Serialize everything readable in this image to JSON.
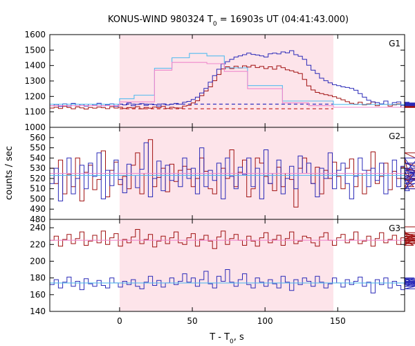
{
  "title_main": "KONUS-WIND 980324 T",
  "title_sub": "0",
  "title_rest": " = 16903s UT (04:41:43.000)",
  "ylabel": "counts / sec",
  "xlabel_main": "T - T",
  "xlabel_sub": "0",
  "xlabel_rest": ", s",
  "colors": {
    "shade": "#fde4ea",
    "red": "#a01010",
    "blue": "#2a2ab8",
    "cyan": "#55bbee",
    "pink": "#ee88cc",
    "red_dash": "#c01818",
    "blue_dash": "#3030c0"
  },
  "chart_data": [
    {
      "type": "line",
      "panel": "G1",
      "xlim": [
        -48,
        196
      ],
      "ylim": [
        1000,
        1600
      ],
      "yticks": [
        1000,
        1100,
        1200,
        1300,
        1400,
        1500,
        1600
      ],
      "xticks": [
        0,
        50,
        100,
        150
      ],
      "shaded_interval": [
        0,
        147
      ],
      "background_levels": [
        {
          "value": 1120,
          "color": "red"
        },
        {
          "value": 1150,
          "color": "blue"
        }
      ],
      "series": [
        {
          "color": "red",
          "x_start": -48,
          "step": 2.944,
          "values": [
            1125,
            1130,
            1122,
            1135,
            1128,
            1120,
            1132,
            1126,
            1118,
            1129,
            1124,
            1131,
            1127,
            1121,
            1133,
            1125,
            1130,
            1122,
            1128,
            1126,
            1134,
            1120,
            1129,
            1124,
            1131,
            1127,
            1135,
            1122,
            1130,
            1126,
            1125,
            1138,
            1142,
            1158,
            1172,
            1205,
            1235,
            1262,
            1302,
            1342,
            1378,
            1392,
            1380,
            1395,
            1384,
            1398,
            1390,
            1402,
            1387,
            1394,
            1380,
            1392,
            1376,
            1398,
            1386,
            1372,
            1366,
            1357,
            1348,
            1310,
            1268,
            1242,
            1226,
            1218,
            1212,
            1206,
            1198,
            1188,
            1178,
            1166,
            1156,
            1150,
            1162,
            1145,
            1152,
            1164,
            1140,
            1150,
            1148,
            1138,
            1145,
            1152,
            1130,
            1160,
            1140,
            1128,
            1150,
            1142,
            1136,
            1152,
            1130,
            1155,
            1140,
            1128,
            1146,
            1150,
            1132
          ]
        },
        {
          "color": "blue",
          "x_start": -48,
          "step": 2.944,
          "values": [
            1140,
            1148,
            1135,
            1152,
            1138,
            1155,
            1141,
            1149,
            1137,
            1150,
            1143,
            1156,
            1139,
            1147,
            1152,
            1135,
            1150,
            1145,
            1158,
            1140,
            1149,
            1153,
            1142,
            1150,
            1146,
            1138,
            1152,
            1144,
            1149,
            1155,
            1150,
            1162,
            1168,
            1180,
            1195,
            1222,
            1252,
            1292,
            1335,
            1376,
            1410,
            1425,
            1440,
            1455,
            1462,
            1470,
            1480,
            1472,
            1468,
            1462,
            1455,
            1476,
            1480,
            1475,
            1488,
            1482,
            1496,
            1470,
            1460,
            1440,
            1402,
            1370,
            1348,
            1318,
            1302,
            1288,
            1276,
            1270,
            1262,
            1258,
            1252,
            1240,
            1218,
            1195,
            1175,
            1165,
            1160,
            1152,
            1170,
            1148,
            1160,
            1165,
            1142,
            1155,
            1162,
            1148,
            1158,
            1150,
            1140,
            1155,
            1145,
            1150,
            1158,
            1140,
            1152,
            1148,
            1145
          ]
        },
        {
          "color": "cyan",
          "step_fit": true,
          "bins": [
            [
              -48,
              0,
              1150
            ],
            [
              0,
              10,
              1185
            ],
            [
              10,
              24,
              1208
            ],
            [
              24,
              36,
              1382
            ],
            [
              36,
              48,
              1450
            ],
            [
              48,
              60,
              1478
            ],
            [
              60,
              72,
              1462
            ],
            [
              72,
              88,
              1385
            ],
            [
              88,
              112,
              1270
            ],
            [
              112,
              130,
              1170
            ],
            [
              130,
              147,
              1170
            ],
            [
              147,
              196,
              1148
            ]
          ]
        },
        {
          "color": "pink",
          "step_fit": true,
          "bins": [
            [
              -48,
              0,
              1140
            ],
            [
              0,
              24,
              1165
            ],
            [
              24,
              36,
              1370
            ],
            [
              36,
              60,
              1420
            ],
            [
              60,
              72,
              1412
            ],
            [
              72,
              88,
              1362
            ],
            [
              88,
              112,
              1250
            ],
            [
              112,
              130,
              1158
            ],
            [
              130,
              147,
              1140
            ],
            [
              147,
              196,
              1130
            ]
          ]
        }
      ]
    },
    {
      "type": "line",
      "panel": "G2",
      "xlim": [
        -48,
        196
      ],
      "ylim": [
        480,
        570
      ],
      "yticks": [
        480,
        490,
        500,
        510,
        520,
        530,
        540,
        550,
        560
      ],
      "xticks": [
        0,
        50,
        100,
        150
      ],
      "shaded_interval": [
        0,
        147
      ],
      "series": [
        {
          "color": "red",
          "x_start": -48,
          "step": 2.944,
          "values": [
            530,
            515,
            538,
            505,
            524,
            512,
            540,
            498,
            526,
            533,
            509,
            519,
            547,
            502,
            528,
            536,
            514,
            522,
            510,
            533,
            545,
            505,
            525,
            558,
            512,
            521,
            530,
            507,
            534,
            517,
            528,
            532,
            529,
            512,
            520,
            540,
            527,
            510,
            505,
            525,
            530,
            520,
            548,
            512,
            526,
            538,
            502,
            510,
            540,
            535,
            522,
            515,
            508,
            531,
            512,
            525,
            519,
            492,
            530,
            540,
            525,
            515,
            531,
            505,
            528,
            520,
            536,
            522,
            510,
            530,
            539,
            512,
            525,
            505,
            528,
            546,
            515,
            522,
            535,
            509,
            527,
            520,
            531,
            540,
            520,
            512,
            530,
            525,
            510,
            535,
            528,
            519,
            545,
            525,
            530,
            520,
            522
          ]
        },
        {
          "color": "blue",
          "x_start": -48,
          "step": 2.944,
          "values": [
            515,
            530,
            498,
            525,
            540,
            505,
            520,
            533,
            510,
            535,
            522,
            545,
            500,
            528,
            513,
            538,
            519,
            506,
            534,
            523,
            511,
            529,
            555,
            502,
            520,
            537,
            508,
            533,
            518,
            525,
            512,
            540,
            520,
            530,
            505,
            550,
            512,
            528,
            518,
            535,
            500,
            540,
            522,
            510,
            531,
            524,
            540,
            512,
            530,
            500,
            548,
            515,
            525,
            538,
            505,
            520,
            532,
            510,
            542,
            525,
            535,
            515,
            502,
            530,
            520,
            545,
            510,
            528,
            535,
            515,
            500,
            522,
            540,
            528,
            512,
            530,
            518,
            535,
            505,
            525,
            538,
            512,
            532,
            520,
            508,
            525,
            540,
            515,
            522,
            530,
            510,
            528,
            520,
            535,
            518,
            525,
            530
          ]
        },
        {
          "color": "pink",
          "constant": 525
        },
        {
          "color": "cyan",
          "constant": 523
        }
      ]
    },
    {
      "type": "line",
      "panel": "G3",
      "xlim": [
        -48,
        196
      ],
      "ylim": [
        140,
        250
      ],
      "yticks": [
        140,
        160,
        180,
        200,
        220,
        240
      ],
      "xticks": [
        0,
        50,
        100,
        150
      ],
      "shaded_interval": [
        0,
        147
      ],
      "series": [
        {
          "color": "red",
          "x_start": -48,
          "step": 2.944,
          "values": [
            225,
            230,
            218,
            226,
            232,
            221,
            227,
            235,
            219,
            224,
            231,
            222,
            236,
            220,
            228,
            233,
            218,
            226,
            222,
            229,
            238,
            221,
            226,
            232,
            217,
            224,
            230,
            221,
            228,
            235,
            222,
            220,
            228,
            233,
            218,
            226,
            231,
            224,
            215,
            229,
            236,
            220,
            227,
            232,
            225,
            219,
            230,
            224,
            218,
            228,
            234,
            222,
            226,
            231,
            219,
            227,
            235,
            221,
            224,
            230,
            228,
            222,
            218,
            229,
            234,
            225,
            219,
            228,
            232,
            222,
            226,
            235,
            221,
            224,
            230,
            218,
            227,
            234,
            222,
            226,
            231,
            220,
            228,
            236,
            224,
            219,
            230,
            225,
            222,
            229,
            234,
            221,
            226,
            232,
            224,
            227,
            241
          ]
        },
        {
          "color": "blue",
          "x_start": -48,
          "step": 2.944,
          "values": [
            172,
            178,
            168,
            175,
            181,
            170,
            176,
            166,
            179,
            173,
            170,
            177,
            171,
            168,
            180,
            174,
            169,
            176,
            172,
            178,
            170,
            167,
            175,
            182,
            171,
            177,
            169,
            174,
            180,
            172,
            176,
            185,
            175,
            180,
            170,
            178,
            188,
            173,
            168,
            182,
            176,
            190,
            175,
            170,
            178,
            185,
            172,
            168,
            180,
            175,
            170,
            178,
            173,
            168,
            182,
            175,
            165,
            178,
            172,
            180,
            176,
            170,
            182,
            175,
            168,
            173,
            180,
            174,
            169,
            178,
            172,
            176,
            181,
            170,
            175,
            162,
            178,
            172,
            180,
            168,
            176,
            171,
            166,
            178,
            173,
            180,
            170,
            176,
            167,
            174,
            179,
            172,
            176,
            170,
            175,
            178,
            172
          ]
        },
        {
          "color": "pink",
          "constant": 225
        },
        {
          "color": "cyan",
          "constant": 174
        }
      ]
    }
  ],
  "panel_labels": [
    "G1",
    "G2",
    "G3"
  ],
  "axis_ticks": {
    "g1": [
      "1000",
      "1100",
      "1200",
      "1300",
      "1400",
      "1500",
      "1600"
    ],
    "g2": [
      "480",
      "490",
      "500",
      "510",
      "520",
      "530",
      "540",
      "550",
      "560"
    ],
    "g3": [
      "140",
      "160",
      "180",
      "200",
      "220",
      "240"
    ],
    "x": [
      "0",
      "50",
      "100",
      "150"
    ]
  }
}
